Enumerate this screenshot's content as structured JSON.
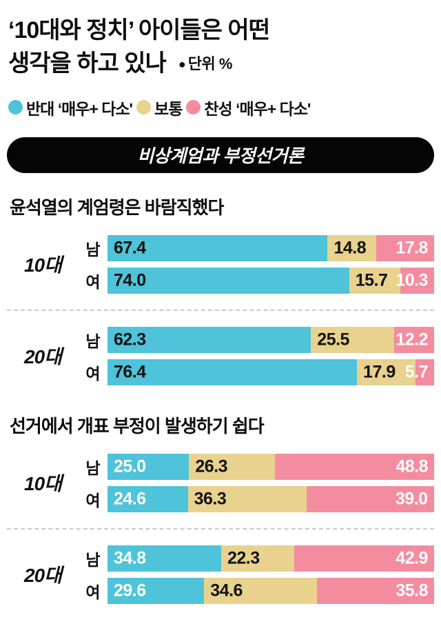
{
  "page": {
    "title_line1": "‘10대와 정치’ 아이들은 어떤",
    "title_line2": "생각을 하고 있나",
    "unit_bullet": "●",
    "unit_label": "단위 %"
  },
  "legend": {
    "items": [
      {
        "name": "oppose",
        "label": "반대 ‘매우+ 다소'",
        "color": "#4ec3d9"
      },
      {
        "name": "neutral",
        "label": "보통",
        "color": "#e8d28d"
      },
      {
        "name": "favor",
        "label": "찬성 ‘매우+ 다소'",
        "color": "#f48ca0"
      }
    ]
  },
  "banner": {
    "label": "비상계엄과 부정선거론"
  },
  "chart_data": [
    {
      "type": "bar",
      "title": "윤석열의 계엄령은 바람직했다",
      "stacked": true,
      "xlim": [
        0,
        100
      ],
      "categories": [
        "반대 ‘매우+ 다소’",
        "보통",
        "찬성 ‘매우+ 다소’"
      ],
      "segment_colors": [
        "#4ec3d9",
        "#e8d28d",
        "#f48ca0"
      ],
      "value_text_colors": [
        "#111111",
        "#111111",
        "#ffffff"
      ],
      "groups": [
        {
          "label": "10대",
          "rows": [
            {
              "label": "남",
              "values": [
                "67.4",
                "14.8",
                "17.8"
              ]
            },
            {
              "label": "여",
              "values": [
                "74.0",
                "15.7",
                "10.3"
              ]
            }
          ]
        },
        {
          "label": "20대",
          "rows": [
            {
              "label": "남",
              "values": [
                "62.3",
                "25.5",
                "12.2"
              ]
            },
            {
              "label": "여",
              "values": [
                "76.4",
                "17.9",
                "5.7"
              ]
            }
          ]
        }
      ]
    },
    {
      "type": "bar",
      "title": "선거에서 개표 부정이 발생하기 쉽다",
      "stacked": true,
      "xlim": [
        0,
        100
      ],
      "categories": [
        "반대 ‘매우+ 다소’",
        "보통",
        "찬성 ‘매우+ 다소’"
      ],
      "segment_colors": [
        "#4ec3d9",
        "#e8d28d",
        "#f48ca0"
      ],
      "value_text_colors": [
        "#ffffff",
        "#111111",
        "#ffffff"
      ],
      "groups": [
        {
          "label": "10대",
          "rows": [
            {
              "label": "남",
              "values": [
                "25.0",
                "26.3",
                "48.8"
              ]
            },
            {
              "label": "여",
              "values": [
                "24.6",
                "36.3",
                "39.0"
              ]
            }
          ]
        },
        {
          "label": "20대",
          "rows": [
            {
              "label": "남",
              "values": [
                "34.8",
                "22.3",
                "42.9"
              ]
            },
            {
              "label": "여",
              "values": [
                "29.6",
                "34.6",
                "35.8"
              ]
            }
          ]
        }
      ]
    }
  ]
}
